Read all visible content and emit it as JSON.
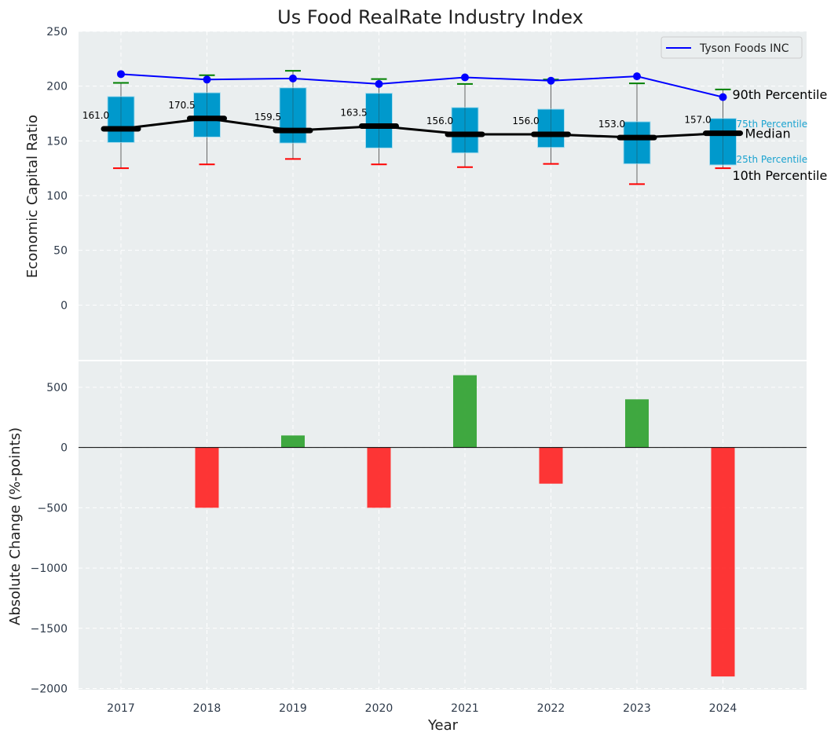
{
  "chart_data": [
    {
      "type": "box",
      "title": "Us Food RealRate Industry Index",
      "ylabel": "Economic Capital Ratio",
      "ylim": [
        -50,
        250
      ],
      "yticks": [
        0,
        50,
        100,
        150,
        200,
        250
      ],
      "grid": true,
      "categories": [
        "2017",
        "2018",
        "2019",
        "2020",
        "2021",
        "2022",
        "2023",
        "2024"
      ],
      "p10": [
        125,
        128.5,
        133.5,
        128.5,
        126,
        129,
        110.5,
        125
      ],
      "p25": [
        148.5,
        153.5,
        148,
        143.5,
        139,
        144,
        129,
        128
      ],
      "median": [
        161.0,
        170.5,
        159.5,
        163.5,
        156.0,
        156.0,
        153.0,
        157.0
      ],
      "median_labels": [
        "161.0",
        "170.5",
        "159.5",
        "163.5",
        "156.0",
        "156.0",
        "153.0",
        "157.0"
      ],
      "p75": [
        190.5,
        194,
        198.5,
        193.5,
        180.5,
        179,
        167.5,
        170.5
      ],
      "p90": [
        203,
        210,
        214,
        206.5,
        202,
        206,
        202.5,
        197
      ],
      "series": [
        {
          "name": "Tyson Foods INC",
          "values": [
            211,
            206,
            207,
            202,
            208,
            205,
            209,
            190
          ],
          "color": "#0000ff"
        }
      ],
      "legend": "top-right",
      "annotations": {
        "p90": "90th Percentile",
        "p75": "75th Percentile",
        "median": "Median",
        "p25": "25th Percentile",
        "p10": "10th Percentile"
      }
    },
    {
      "type": "bar",
      "xlabel": "Year",
      "ylabel": "Absolute Change (%-points)",
      "ylim": [
        -2010,
        715
      ],
      "yticks": [
        -2000,
        -1500,
        -1000,
        -500,
        0,
        500
      ],
      "categories": [
        "2017",
        "2018",
        "2019",
        "2020",
        "2021",
        "2022",
        "2023",
        "2024"
      ],
      "values": [
        0,
        -500,
        100,
        -500,
        600,
        -300,
        400,
        -1900
      ],
      "colors": {
        "positive": "#2ca02c",
        "negative": "#ff2020"
      }
    }
  ]
}
